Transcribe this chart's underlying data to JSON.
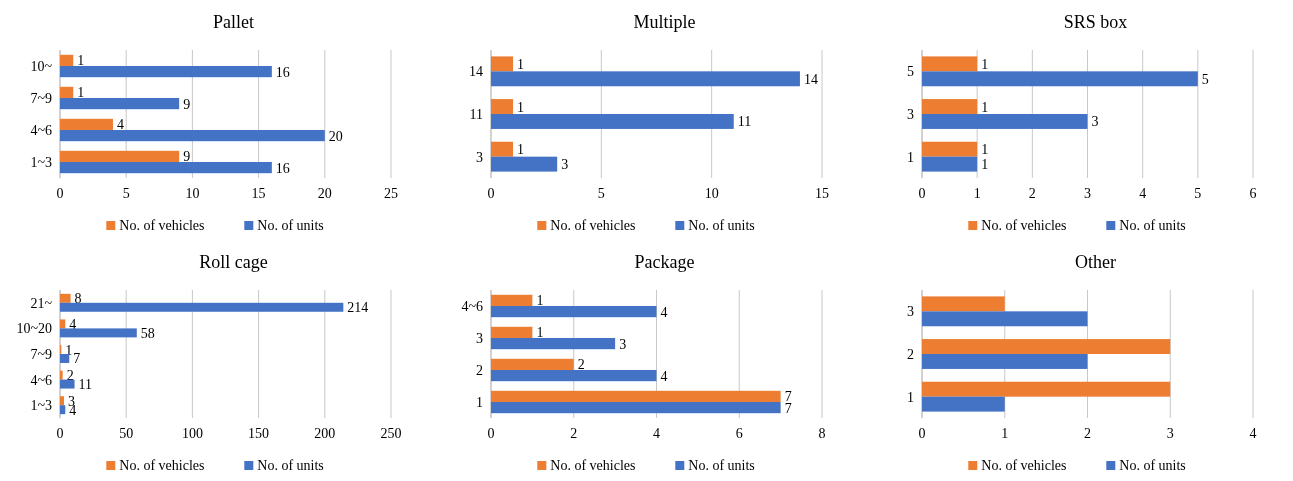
{
  "chart_data": [
    {
      "type": "bar",
      "orientation": "horizontal",
      "title": "Pallet",
      "categories": [
        "10~",
        "7~9",
        "4~6",
        "1~3"
      ],
      "series": [
        {
          "name": "No. of vehicles",
          "color": "#ed7d31",
          "values": [
            1,
            1,
            4,
            9
          ]
        },
        {
          "name": "No. of units",
          "color": "#4472c4",
          "values": [
            16,
            9,
            20,
            16
          ]
        }
      ],
      "xlim": [
        0,
        25
      ],
      "xticks": [
        0,
        5,
        10,
        15,
        20,
        25
      ],
      "grid": "x",
      "legend": "bottom",
      "data_labels": true
    },
    {
      "type": "bar",
      "orientation": "horizontal",
      "title": "Multiple",
      "categories": [
        "14",
        "11",
        "3"
      ],
      "series": [
        {
          "name": "No. of vehicles",
          "color": "#ed7d31",
          "values": [
            1,
            1,
            1
          ]
        },
        {
          "name": "No. of units",
          "color": "#4472c4",
          "values": [
            14,
            11,
            3
          ]
        }
      ],
      "xlim": [
        0,
        15
      ],
      "xticks": [
        0,
        5,
        10,
        15
      ],
      "grid": "x",
      "legend": "bottom",
      "data_labels": true
    },
    {
      "type": "bar",
      "orientation": "horizontal",
      "title": "SRS box",
      "categories": [
        "5",
        "3",
        "1"
      ],
      "series": [
        {
          "name": "No. of vehicles",
          "color": "#ed7d31",
          "values": [
            1,
            1,
            1
          ]
        },
        {
          "name": "No. of units",
          "color": "#4472c4",
          "values": [
            5,
            3,
            1
          ]
        }
      ],
      "xlim": [
        0,
        6
      ],
      "xticks": [
        0,
        1,
        2,
        3,
        4,
        5,
        6
      ],
      "grid": "x",
      "legend": "bottom",
      "data_labels": true
    },
    {
      "type": "bar",
      "orientation": "horizontal",
      "title": "Roll cage",
      "categories": [
        "21~",
        "10~20",
        "7~9",
        "4~6",
        "1~3"
      ],
      "series": [
        {
          "name": "No. of vehicles",
          "color": "#ed7d31",
          "values": [
            8,
            4,
            1,
            2,
            3
          ]
        },
        {
          "name": "No. of units",
          "color": "#4472c4",
          "values": [
            214,
            58,
            7,
            11,
            4
          ]
        }
      ],
      "xlim": [
        0,
        250
      ],
      "xticks": [
        0,
        50,
        100,
        150,
        200,
        250
      ],
      "grid": "x",
      "legend": "bottom",
      "data_labels": true
    },
    {
      "type": "bar",
      "orientation": "horizontal",
      "title": "Package",
      "categories": [
        "4~6",
        "3",
        "2",
        "1"
      ],
      "series": [
        {
          "name": "No. of vehicles",
          "color": "#ed7d31",
          "values": [
            1,
            1,
            2,
            7
          ]
        },
        {
          "name": "No. of units",
          "color": "#4472c4",
          "values": [
            4,
            3,
            4,
            7
          ]
        }
      ],
      "xlim": [
        0,
        8
      ],
      "xticks": [
        0,
        2,
        4,
        6,
        8
      ],
      "grid": "x",
      "legend": "bottom",
      "data_labels": true
    },
    {
      "type": "bar",
      "orientation": "horizontal",
      "title": "Other",
      "categories": [
        "3",
        "2",
        "1"
      ],
      "series": [
        {
          "name": "No. of vehicles",
          "color": "#ed7d31",
          "values": [
            1,
            3,
            3
          ]
        },
        {
          "name": "No. of units",
          "color": "#4472c4",
          "values": [
            2,
            2,
            1
          ]
        }
      ],
      "xlim": [
        0,
        4
      ],
      "xticks": [
        0,
        1,
        2,
        3,
        4
      ],
      "grid": "x",
      "legend": "bottom"
    }
  ]
}
